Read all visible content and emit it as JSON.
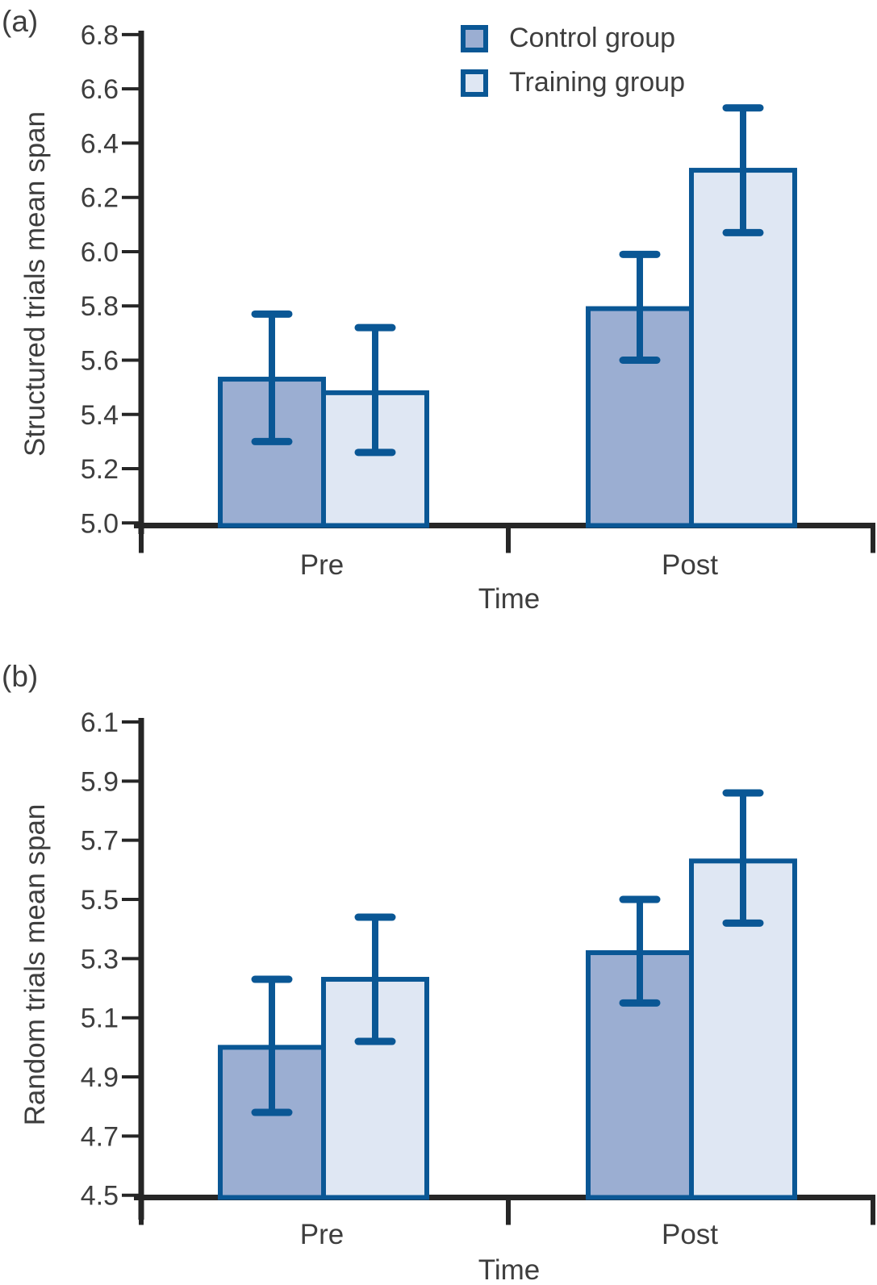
{
  "legend": {
    "items": [
      {
        "label": "Control group",
        "color": "#9BAED2"
      },
      {
        "label": "Training group",
        "color": "#DFE7F3"
      }
    ]
  },
  "colors": {
    "control_fill": "#9BAED2",
    "training_fill": "#DFE7F3",
    "bar_border": "#0A5795",
    "error_bar": "#0A5795",
    "axis": "#262626",
    "text": "#3e3e3e"
  },
  "chart_data": [
    {
      "type": "bar",
      "panel_label": "(a)",
      "ylabel": "Structured trials mean span",
      "xlabel": "Time",
      "categories": [
        "Pre",
        "Post"
      ],
      "series": [
        {
          "name": "Control group",
          "values": [
            5.53,
            5.79
          ],
          "error_low": [
            5.3,
            5.6
          ],
          "error_high": [
            5.77,
            5.99
          ]
        },
        {
          "name": "Training group",
          "values": [
            5.48,
            6.3
          ],
          "error_low": [
            5.26,
            6.07
          ],
          "error_high": [
            5.72,
            6.53
          ]
        }
      ],
      "ylim": [
        5.0,
        6.8
      ],
      "ytick_step": 0.2,
      "grid": false,
      "legend_position": "top-center"
    },
    {
      "type": "bar",
      "panel_label": "(b)",
      "ylabel": "Random trials mean span",
      "xlabel": "Time",
      "categories": [
        "Pre",
        "Post"
      ],
      "series": [
        {
          "name": "Control group",
          "values": [
            5.0,
            5.32
          ],
          "error_low": [
            4.78,
            5.15
          ],
          "error_high": [
            5.23,
            5.5
          ]
        },
        {
          "name": "Training group",
          "values": [
            5.23,
            5.63
          ],
          "error_low": [
            5.02,
            5.42
          ],
          "error_high": [
            5.44,
            5.86
          ]
        }
      ],
      "ylim": [
        4.5,
        6.1
      ],
      "ytick_step": 0.2,
      "grid": false,
      "legend_position": "none"
    }
  ]
}
